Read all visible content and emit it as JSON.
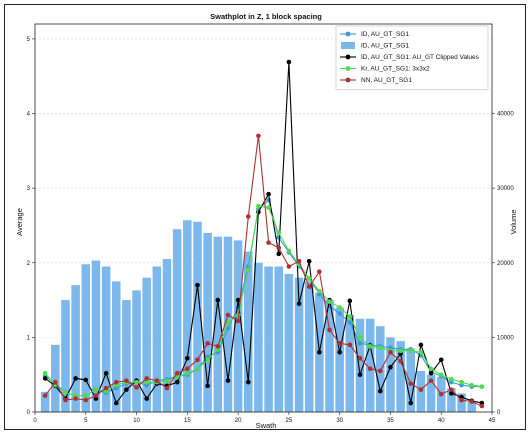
{
  "chart_data": {
    "type": "line",
    "title": "Swathplot in Z, 1 block spacing",
    "xlabel": "Swath",
    "ylabel": "Average",
    "y2label": "Volume",
    "xlim": [
      0,
      45
    ],
    "ylim": [
      0,
      5.2
    ],
    "y2lim": [
      0,
      52000
    ],
    "xticks": [
      "0",
      "5",
      "10",
      "15",
      "20",
      "25",
      "30",
      "35",
      "40",
      "45"
    ],
    "yticks": [
      "0",
      "1",
      "2",
      "3",
      "4",
      "5"
    ],
    "y2ticks": [
      "0",
      "10000",
      "20000",
      "30000",
      "40000"
    ],
    "grid": true,
    "legend_position": "top-right",
    "x": [
      1,
      2,
      3,
      4,
      5,
      6,
      7,
      8,
      9,
      10,
      11,
      12,
      13,
      14,
      15,
      16,
      17,
      18,
      19,
      20,
      21,
      22,
      23,
      24,
      25,
      26,
      27,
      28,
      29,
      30,
      31,
      32,
      33,
      34,
      35,
      36,
      37,
      38,
      39,
      40,
      41,
      42,
      43,
      44
    ],
    "bars": {
      "name": "ID, AU_GT_SG1",
      "color": "#7db8ec",
      "values": [
        2700,
        9000,
        15000,
        17000,
        19800,
        20300,
        19500,
        17500,
        15000,
        16300,
        18000,
        19500,
        20500,
        24500,
        25700,
        25500,
        24000,
        23500,
        23500,
        23000,
        21500,
        20000,
        19500,
        19500,
        18500,
        18000,
        17500,
        16000,
        15000,
        14000,
        13000,
        12500,
        12500,
        11500,
        10000,
        9500,
        8500,
        5500,
        5000,
        4700,
        3200,
        2500,
        1300,
        0
      ]
    },
    "series": [
      {
        "name": "ID, AU_GT_SG1",
        "color": "#3a9ad9",
        "values": [
          0.48,
          0.38,
          0.26,
          0.22,
          0.22,
          0.3,
          0.26,
          0.32,
          0.38,
          0.4,
          0.36,
          0.42,
          0.44,
          0.48,
          0.5,
          0.58,
          0.74,
          0.8,
          1.12,
          1.4,
          1.95,
          2.72,
          2.84,
          2.34,
          2.14,
          1.95,
          1.79,
          1.58,
          1.42,
          1.32,
          1.2,
          0.92,
          0.9,
          0.88,
          0.86,
          0.84,
          0.84,
          0.76,
          0.54,
          0.48,
          0.4,
          0.36,
          0.34,
          0.34
        ]
      },
      {
        "name": "ID, AU_GT_SG1: AU_GT Clipped Values",
        "color": "#000000",
        "values": [
          0.45,
          0.35,
          0.18,
          0.45,
          0.43,
          0.18,
          0.52,
          0.12,
          0.3,
          0.42,
          0.18,
          0.38,
          0.35,
          0.4,
          0.72,
          1.7,
          0.35,
          1.5,
          0.42,
          1.5,
          0.4,
          2.68,
          2.92,
          2.12,
          4.69,
          1.45,
          2.02,
          0.8,
          1.5,
          0.8,
          1.49,
          0.5,
          0.89,
          0.28,
          0.6,
          0.78,
          0.12,
          0.9,
          0.52,
          0.7,
          0.25,
          0.2,
          0.15,
          0.12
        ]
      },
      {
        "name": "Kr, AU_GT_SG1: 3x3x2",
        "color": "#4fdc4f",
        "values": [
          0.52,
          0.36,
          0.26,
          0.22,
          0.22,
          0.3,
          0.28,
          0.36,
          0.4,
          0.4,
          0.4,
          0.4,
          0.42,
          0.47,
          0.52,
          0.58,
          0.7,
          0.84,
          1.2,
          1.3,
          1.9,
          2.76,
          2.74,
          2.4,
          2.16,
          1.98,
          1.79,
          1.62,
          1.48,
          1.4,
          1.28,
          1.0,
          0.88,
          0.86,
          0.82,
          0.82,
          0.82,
          0.8,
          0.58,
          0.5,
          0.44,
          0.4,
          0.36,
          0.34
        ]
      },
      {
        "name": "NN, AU_GT_SG1",
        "color": "#b03030",
        "values": [
          0.22,
          0.4,
          0.16,
          0.18,
          0.16,
          0.22,
          0.32,
          0.4,
          0.42,
          0.33,
          0.45,
          0.42,
          0.32,
          0.52,
          0.58,
          0.7,
          0.92,
          0.88,
          1.3,
          1.22,
          2.62,
          3.7,
          2.27,
          2.2,
          1.95,
          2.02,
          1.68,
          1.88,
          1.1,
          0.92,
          0.9,
          0.72,
          0.58,
          0.55,
          0.8,
          0.68,
          0.38,
          0.3,
          0.42,
          0.24,
          0.3,
          0.16,
          0.14,
          0.08
        ]
      }
    ],
    "legend": [
      {
        "label": "ID, AU_GT_SG1",
        "kind": "line-marker",
        "color": "#3a9ad9"
      },
      {
        "label": "ID, AU_GT_SG1",
        "kind": "bar",
        "color": "#7db8ec"
      },
      {
        "label": "ID, AU_GT_SG1: AU_GT Clipped Values",
        "kind": "line-marker",
        "color": "#000000"
      },
      {
        "label": "Kr, AU_GT_SG1: 3x3x2",
        "kind": "line-marker",
        "color": "#4fdc4f"
      },
      {
        "label": "NN, AU_GT_SG1",
        "kind": "line-marker",
        "color": "#b03030"
      }
    ]
  }
}
